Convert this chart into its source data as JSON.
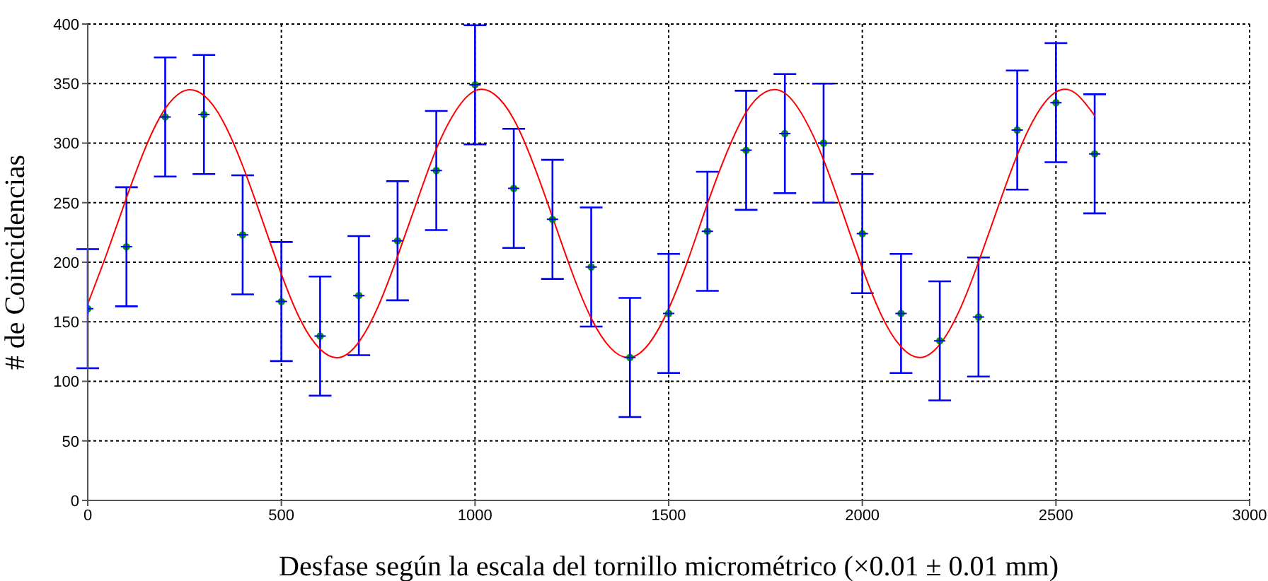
{
  "chart_data": {
    "type": "scatter",
    "xlabel": "Desfase según la escala del tornillo micrométrico (×0.01 ± 0.01 mm)",
    "ylabel": "# de Coincidencias",
    "xlim": [
      0,
      3000
    ],
    "xticks": [
      0,
      500,
      1000,
      1500,
      2000,
      2500,
      3000
    ],
    "ylim": [
      0,
      400
    ],
    "yticks": [
      0,
      50,
      100,
      150,
      200,
      250,
      300,
      350,
      400
    ],
    "grid": true,
    "marker": "circle",
    "series": [
      {
        "color": "#00a000",
        "x": [
          0,
          100,
          200,
          300,
          400,
          500,
          600,
          700,
          800,
          900,
          1000,
          1100,
          1200,
          1300,
          1400,
          1500,
          1600,
          1700,
          1800,
          1900,
          2000,
          2100,
          2200,
          2300,
          2400,
          2500,
          2600
        ],
        "values": [
          161,
          213,
          322,
          324,
          223,
          167,
          138,
          172,
          218,
          277,
          349,
          262,
          236,
          196,
          120,
          157,
          226,
          294,
          308,
          300,
          224,
          157,
          134,
          154,
          311,
          334,
          291
        ],
        "errors": [
          50,
          50,
          50,
          50,
          50,
          50,
          50,
          50,
          50,
          50,
          50,
          50,
          50,
          50,
          50,
          50,
          50,
          50,
          50,
          50,
          50,
          50,
          50,
          50,
          50,
          50,
          50
        ]
      },
      {
        "type": "line",
        "color": "#ff0000",
        "marker": "none",
        "x": [
          0,
          50,
          100,
          150,
          200,
          250,
          300,
          350,
          400,
          450,
          500,
          550,
          600,
          650,
          700,
          750,
          800,
          850,
          900,
          950,
          1000,
          1050,
          1100,
          1150,
          1200,
          1250,
          1300,
          1350,
          1400,
          1450,
          1500,
          1550,
          1600,
          1650,
          1700,
          1750,
          1800,
          1850,
          1900,
          1950,
          2000,
          2050,
          2100,
          2150,
          2200,
          2250,
          2300,
          2350,
          2400,
          2450,
          2500,
          2550,
          2600
        ],
        "values": [
          165,
          208,
          254,
          297,
          329,
          344,
          340,
          318,
          281,
          236,
          190,
          151,
          127,
          120,
          133,
          163,
          205,
          251,
          295,
          327,
          344,
          341,
          320,
          283,
          238,
          192,
          153,
          128,
          120,
          132,
          161,
          202,
          249,
          292,
          326,
          343,
          342,
          321,
          286,
          241,
          195,
          155,
          129,
          120,
          131,
          159,
          200,
          246,
          290,
          324,
          343,
          342,
          323
        ]
      }
    ]
  }
}
